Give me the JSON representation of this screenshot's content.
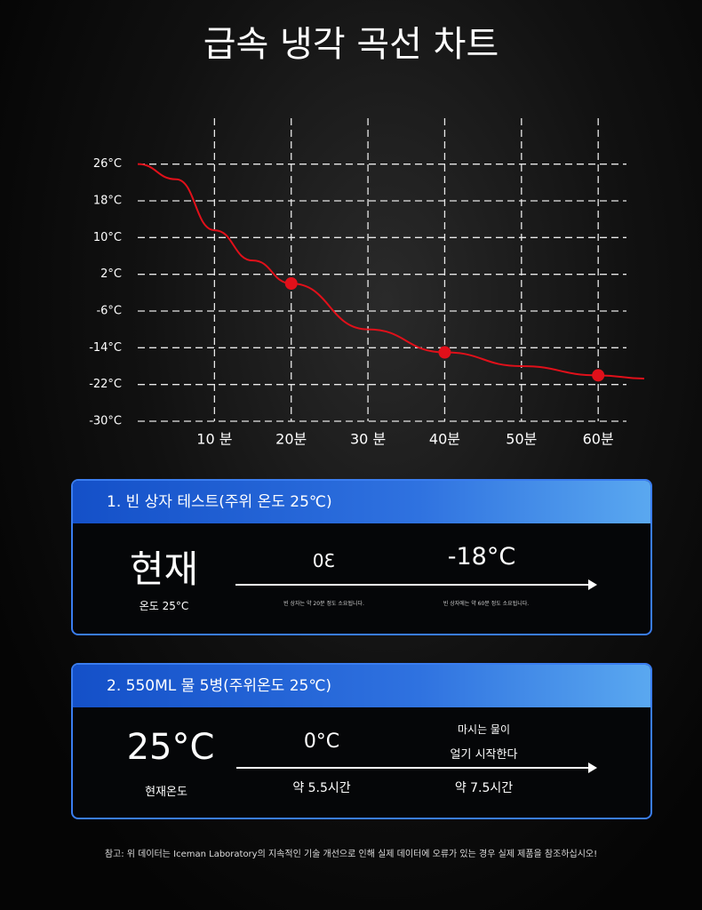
{
  "chart_data": {
    "type": "line",
    "title": "급속 냉각 곡선 차트",
    "xlim": [
      0,
      66
    ],
    "ylim": [
      -30,
      36
    ],
    "xticks": [
      {
        "value": 10,
        "label": "10 분"
      },
      {
        "value": 20,
        "label": "20분"
      },
      {
        "value": 30,
        "label": "30 분"
      },
      {
        "value": 40,
        "label": "40분"
      },
      {
        "value": 50,
        "label": "50분"
      },
      {
        "value": 60,
        "label": "60분"
      }
    ],
    "yticks": [
      {
        "value": 26,
        "label": "26°C"
      },
      {
        "value": 18,
        "label": "18°C"
      },
      {
        "value": 10,
        "label": "10°C"
      },
      {
        "value": 2,
        "label": "2°C"
      },
      {
        "value": -6,
        "label": "-6°C"
      },
      {
        "value": -14,
        "label": "-14°C"
      },
      {
        "value": -22,
        "label": "-22°C"
      },
      {
        "value": -30,
        "label": "-30°C"
      }
    ],
    "grid": true,
    "series": [
      {
        "color": "#e0101a",
        "x": [
          0,
          5,
          10,
          15,
          20,
          30,
          40,
          50,
          60,
          66
        ],
        "values": [
          26,
          22.7,
          11.6,
          5,
          0,
          -10,
          -15,
          -18,
          -20,
          -20.7
        ]
      },
      {
        "color": "#e0101a",
        "x": [
          20,
          40,
          60
        ],
        "values": [
          0,
          -15,
          -20
        ]
      }
    ]
  },
  "panels": [
    {
      "header": "1. 빈 상자 테스트(주위 온도 25℃)",
      "current": "현재",
      "current_note": "온도 25°C",
      "mid": "30",
      "mid_note": "빈 상자는 약 20분 정도 소요됩니다.",
      "end": "-18°C",
      "end_note": "빈 상자에는 약 60분 정도 소요됩니다."
    },
    {
      "header": "2. 550ML 물 5병(주위온도 25℃)",
      "current": "25°C",
      "current_note": "현재온도",
      "mid": "0°C",
      "mid_note": "약 5.5시간",
      "end_line1": "마시는 물이",
      "end_line2": "얼기 시작한다",
      "end_note": "약 7.5시간"
    }
  ],
  "footnote": "참고: 위 데이터는 Iceman Laboratory의 지속적인 기술 개선으로 인해 실제 데이터에 오류가 있는 경우 실제 제품을 참조하십시오!"
}
